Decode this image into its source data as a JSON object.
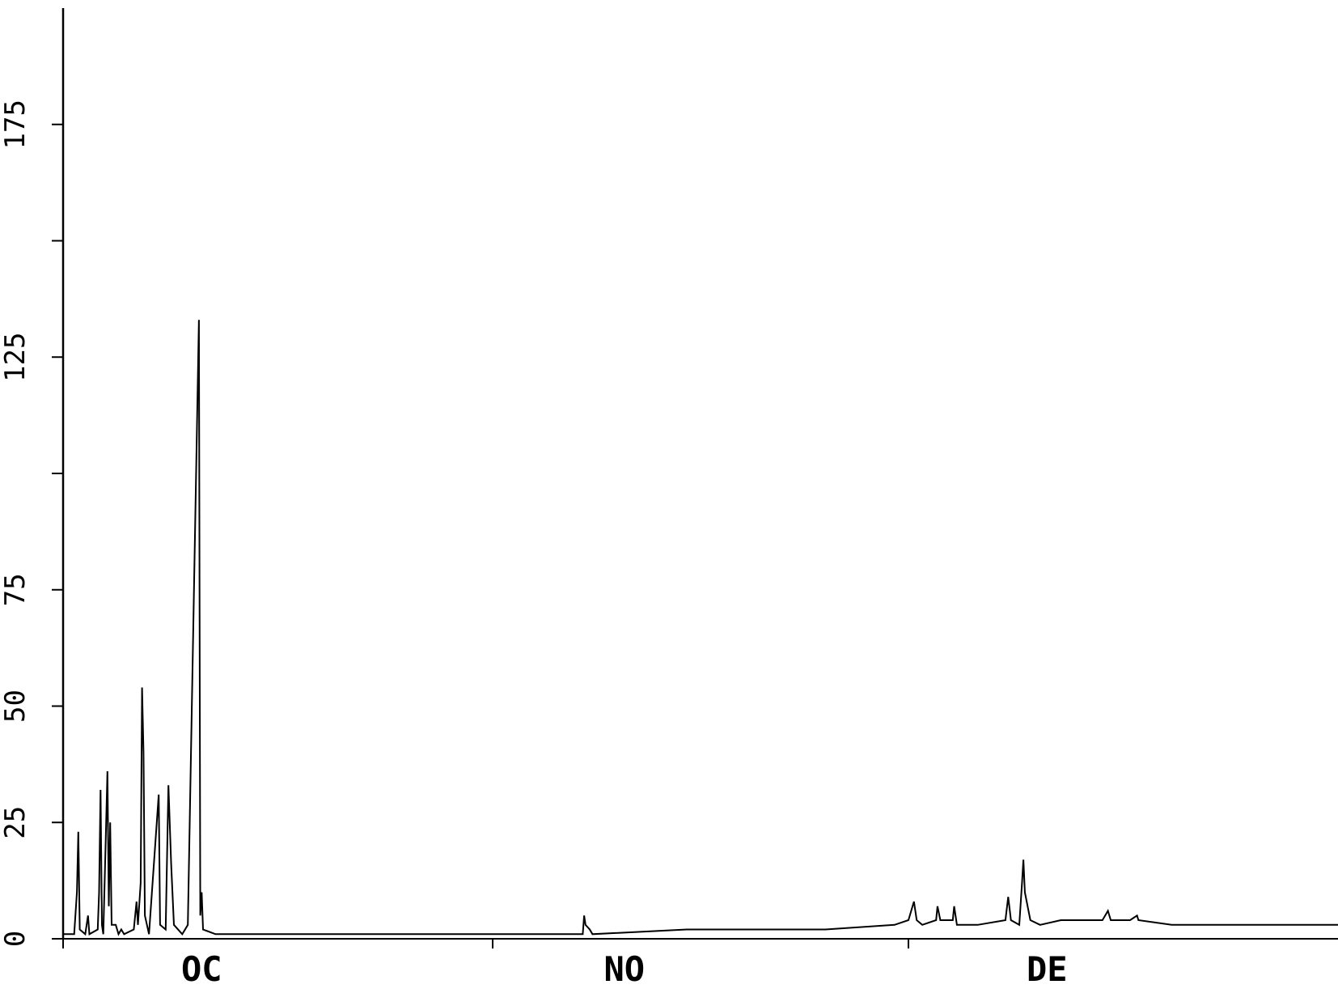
{
  "chart_data": {
    "type": "line",
    "title": "",
    "xlabel": "",
    "ylabel": "",
    "ylim": [
      0,
      200
    ],
    "y_ticks": [
      0,
      25,
      50,
      75,
      100,
      125,
      150,
      175
    ],
    "y_tick_labels": [
      "0",
      "25",
      "50",
      "75",
      "",
      "125",
      "",
      "175"
    ],
    "x_range": [
      0,
      92
    ],
    "x_ticks": [
      {
        "x": 0,
        "label": ""
      },
      {
        "x": 31,
        "label": ""
      },
      {
        "x": 61,
        "label": ""
      }
    ],
    "x_labels": [
      {
        "x": 10,
        "label": "OC"
      },
      {
        "x": 40.5,
        "label": "NO"
      },
      {
        "x": 71,
        "label": "DE"
      }
    ],
    "grid": false,
    "series": [
      {
        "color": "#000000",
        "points": [
          [
            0.0,
            1
          ],
          [
            0.8,
            1
          ],
          [
            1.0,
            10
          ],
          [
            1.1,
            23
          ],
          [
            1.2,
            2
          ],
          [
            1.6,
            1
          ],
          [
            1.8,
            5
          ],
          [
            1.9,
            1
          ],
          [
            2.5,
            2
          ],
          [
            2.6,
            10
          ],
          [
            2.7,
            32
          ],
          [
            2.8,
            3
          ],
          [
            2.9,
            1
          ],
          [
            3.1,
            24
          ],
          [
            3.2,
            36
          ],
          [
            3.3,
            7
          ],
          [
            3.4,
            25
          ],
          [
            3.5,
            3
          ],
          [
            3.8,
            3
          ],
          [
            4.0,
            1
          ],
          [
            4.2,
            2
          ],
          [
            4.4,
            1
          ],
          [
            5.1,
            2
          ],
          [
            5.3,
            8
          ],
          [
            5.4,
            3
          ],
          [
            5.6,
            12
          ],
          [
            5.7,
            54
          ],
          [
            5.8,
            40
          ],
          [
            5.9,
            5
          ],
          [
            6.2,
            1
          ],
          [
            6.9,
            31
          ],
          [
            7.0,
            3
          ],
          [
            7.4,
            2
          ],
          [
            7.6,
            33
          ],
          [
            7.8,
            16
          ],
          [
            8.0,
            3
          ],
          [
            8.6,
            1
          ],
          [
            9.0,
            3
          ],
          [
            9.8,
            133
          ],
          [
            9.9,
            5
          ],
          [
            10.0,
            10
          ],
          [
            10.1,
            2
          ],
          [
            11.0,
            1
          ],
          [
            20.0,
            1
          ],
          [
            30.0,
            1
          ],
          [
            37.5,
            1
          ],
          [
            37.6,
            5
          ],
          [
            37.7,
            3
          ],
          [
            38.0,
            2
          ],
          [
            38.2,
            1
          ],
          [
            45.0,
            2
          ],
          [
            55.0,
            2
          ],
          [
            60.0,
            3
          ],
          [
            61.0,
            4
          ],
          [
            61.4,
            8
          ],
          [
            61.6,
            4
          ],
          [
            62.0,
            3
          ],
          [
            63.0,
            4
          ],
          [
            63.1,
            7
          ],
          [
            63.3,
            4
          ],
          [
            64.2,
            4
          ],
          [
            64.3,
            7
          ],
          [
            64.5,
            3
          ],
          [
            66.0,
            3
          ],
          [
            68.0,
            4
          ],
          [
            68.2,
            9
          ],
          [
            68.4,
            4
          ],
          [
            69.0,
            3
          ],
          [
            69.2,
            12
          ],
          [
            69.3,
            17
          ],
          [
            69.4,
            10
          ],
          [
            69.6,
            7
          ],
          [
            69.8,
            4
          ],
          [
            70.5,
            3
          ],
          [
            72.0,
            4
          ],
          [
            75.0,
            4
          ],
          [
            75.4,
            6
          ],
          [
            75.6,
            4
          ],
          [
            77.0,
            4
          ],
          [
            77.5,
            5
          ],
          [
            77.6,
            4
          ],
          [
            80.0,
            3
          ],
          [
            85.0,
            3
          ],
          [
            92.0,
            3
          ]
        ]
      }
    ]
  }
}
